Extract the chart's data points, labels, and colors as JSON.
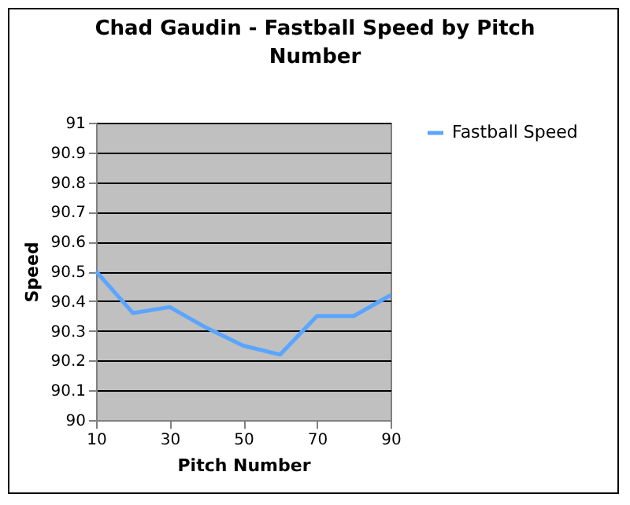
{
  "chart_data": {
    "type": "line",
    "title": "Chad Gaudin - Fastball Speed by Pitch Number",
    "xlabel": "Pitch Number",
    "ylabel": "Speed",
    "x": [
      10,
      20,
      30,
      40,
      50,
      60,
      70,
      80,
      90
    ],
    "series": [
      {
        "name": "Fastball Speed",
        "color": "#5aa5ff",
        "values": [
          90.5,
          90.36,
          90.38,
          90.31,
          90.25,
          90.22,
          90.35,
          90.35,
          90.42
        ]
      }
    ],
    "xlim": [
      10,
      90
    ],
    "xticks": [
      10,
      30,
      50,
      70,
      90
    ],
    "ylim": [
      90,
      91
    ],
    "yticks": [
      90,
      90.1,
      90.2,
      90.3,
      90.4,
      90.5,
      90.6,
      90.7,
      90.8,
      90.9,
      91
    ],
    "grid": "y",
    "legend": "right",
    "marker": "none",
    "line_style": "solid"
  }
}
